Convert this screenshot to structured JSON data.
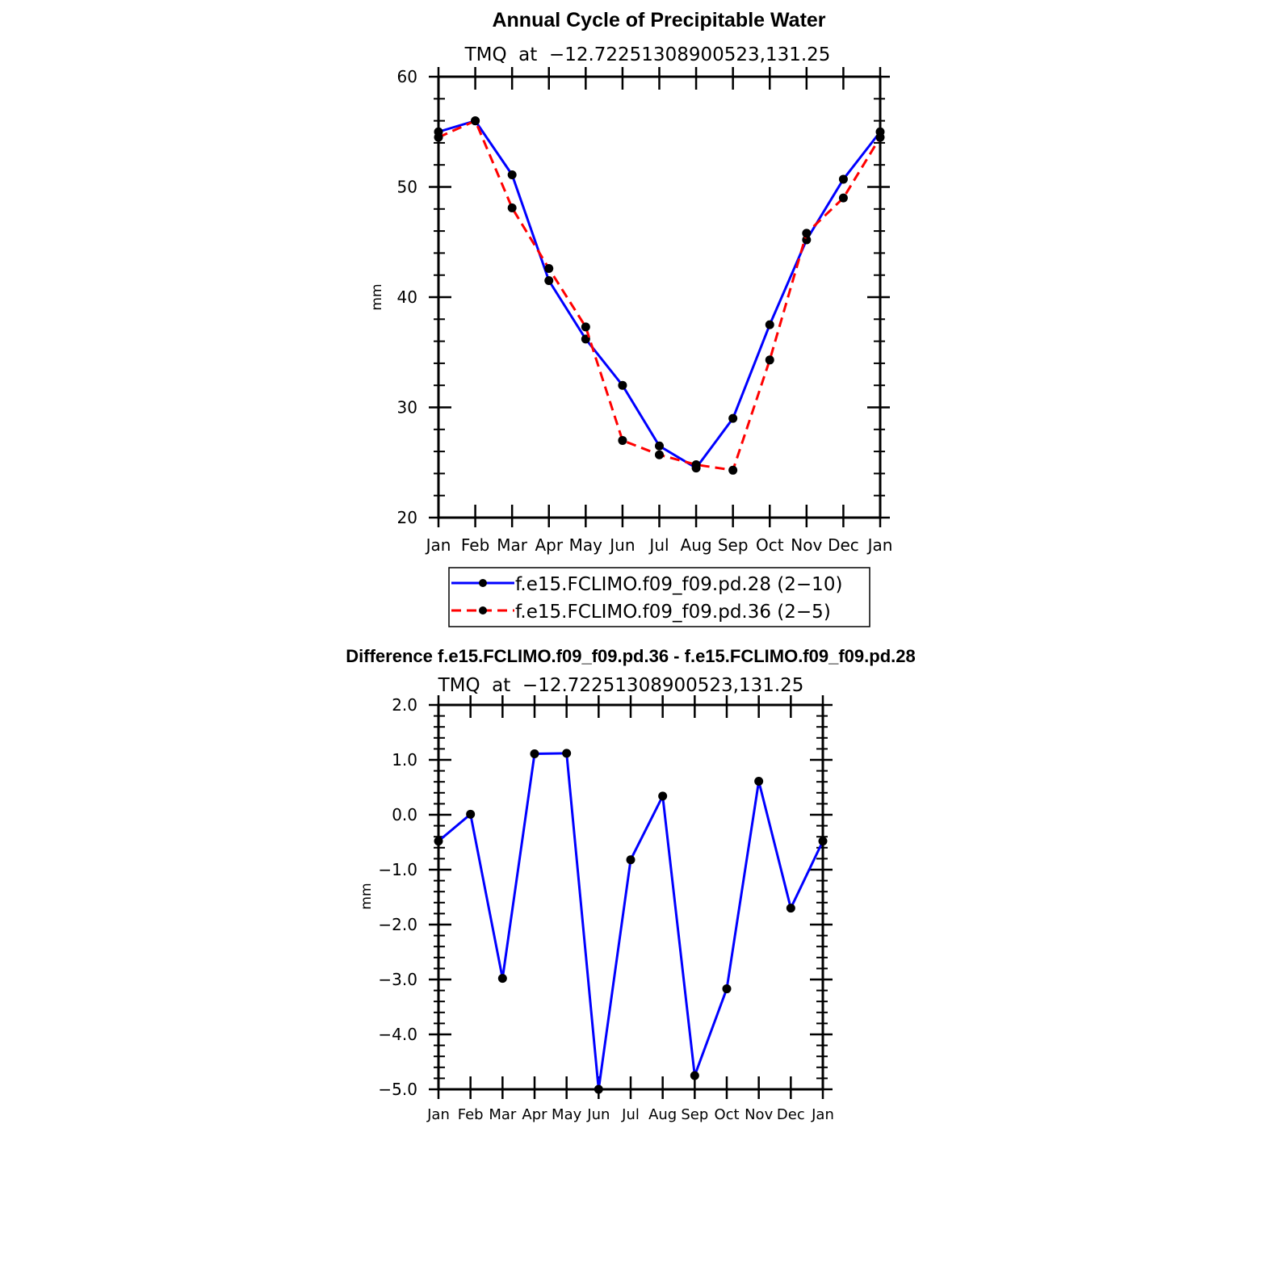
{
  "chart_data": [
    {
      "type": "line",
      "title": "Annual Cycle of Precipitable Water",
      "subtitle": "TMQ  at  −12.72251308900523,131.25",
      "xlabel": "",
      "ylabel": "mm",
      "categories": [
        "Jan",
        "Feb",
        "Mar",
        "Apr",
        "May",
        "Jun",
        "Jul",
        "Aug",
        "Sep",
        "Oct",
        "Nov",
        "Dec",
        "Jan"
      ],
      "yticks": [
        "20",
        "30",
        "40",
        "50",
        "60"
      ],
      "ylim": [
        20,
        60
      ],
      "grid": false,
      "legend_position": "bottom",
      "series": [
        {
          "name": "f.e15.FCLIMO.f09_f09.pd.28 (2−10)",
          "color": "#0000ff",
          "dash": "solid",
          "values": [
            55.0,
            56.0,
            51.1,
            41.5,
            36.2,
            32.0,
            26.5,
            24.5,
            29.0,
            37.5,
            45.2,
            50.7,
            55.0
          ]
        },
        {
          "name": "f.e15.FCLIMO.f09_f09.pd.36 (2−5)",
          "color": "#ff0000",
          "dash": "dashed",
          "values": [
            54.5,
            56.0,
            48.1,
            42.6,
            37.3,
            27.0,
            25.7,
            24.8,
            24.3,
            34.3,
            45.8,
            49.0,
            54.5
          ]
        }
      ]
    },
    {
      "type": "line",
      "title": "Difference f.e15.FCLIMO.f09_f09.pd.36 - f.e15.FCLIMO.f09_f09.pd.28",
      "subtitle": "TMQ  at  −12.72251308900523,131.25",
      "xlabel": "",
      "ylabel": "mm",
      "categories": [
        "Jan",
        "Feb",
        "Mar",
        "Apr",
        "May",
        "Jun",
        "Jul",
        "Aug",
        "Sep",
        "Oct",
        "Nov",
        "Dec",
        "Jan"
      ],
      "yticks": [
        "2.0",
        "1.0",
        "0.0",
        "−1.0",
        "−2.0",
        "−3.0",
        "−4.0",
        "−5.0"
      ],
      "ylim": [
        -5,
        2
      ],
      "grid": false,
      "series": [
        {
          "color": "#0000ff",
          "dash": "solid",
          "values": [
            -0.48,
            0.01,
            -2.98,
            1.11,
            1.12,
            -5.0,
            -0.82,
            0.34,
            -4.75,
            -3.17,
            0.61,
            -1.7,
            -0.48
          ]
        }
      ]
    }
  ]
}
